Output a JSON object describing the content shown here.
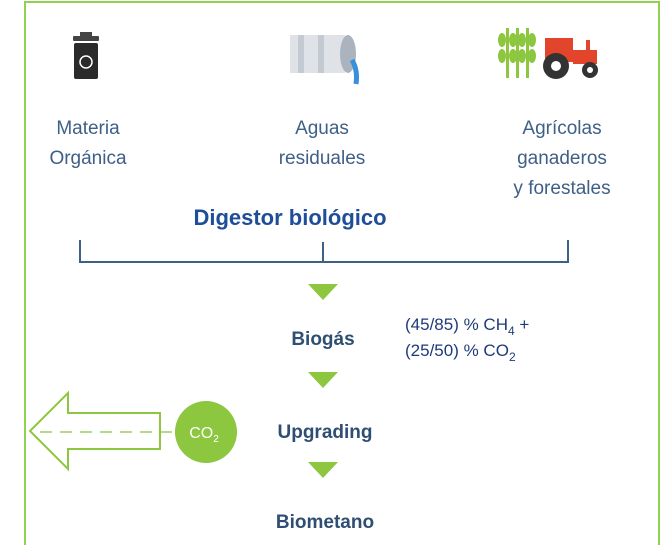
{
  "sources": [
    {
      "lines": [
        "Materia",
        "Orgánica"
      ]
    },
    {
      "lines": [
        "Aguas",
        "residuales"
      ]
    },
    {
      "lines": [
        "Agrícolas",
        "ganaderos",
        "y forestales"
      ]
    }
  ],
  "digester": "Digestor biológico",
  "steps": [
    "Biogás",
    "Upgrading",
    "Biometano"
  ],
  "composition": [
    {
      "text": "(45/85) % CH",
      "sub": "4",
      "tail": " +"
    },
    {
      "text": "(25/50) % CO",
      "sub": "2"
    }
  ],
  "co2_badge": {
    "text": "CO",
    "sub": "2"
  }
}
